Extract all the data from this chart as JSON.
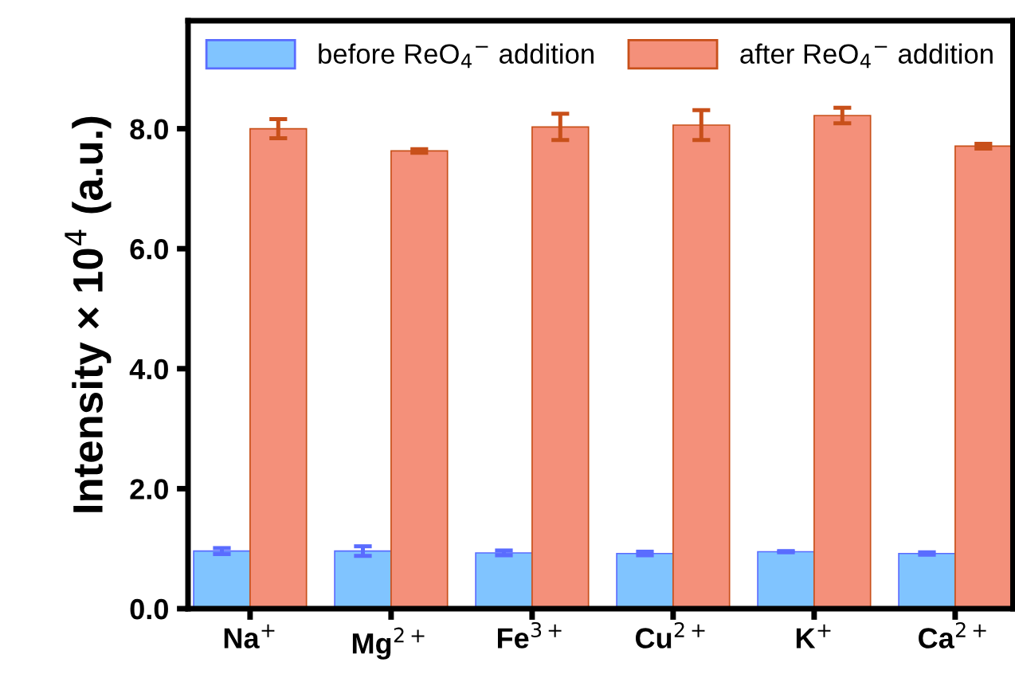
{
  "chart_data": {
    "type": "bar",
    "ylabel": "Intensity × 10$^{4}$ (a.u.)",
    "categories": [
      "Na$^{+}$",
      "Mg$^{2+}$",
      "Fe$^{3+}$",
      "Cu$^{2+}$",
      "K$^{+}$",
      "Ca$^{2+}$"
    ],
    "series": [
      {
        "name": "before ReO$_{4}$$^{−}$ addition",
        "color": "#80c4ff",
        "values": [
          0.96,
          0.96,
          0.93,
          0.92,
          0.95,
          0.92
        ],
        "errors": [
          0.05,
          0.08,
          0.04,
          0.03,
          0.01,
          0.02
        ]
      },
      {
        "name": "after ReO$_{4}$$^{−}$ addition",
        "color": "#f4907a",
        "values": [
          8.0,
          7.63,
          8.03,
          8.06,
          8.22,
          7.71
        ],
        "errors": [
          0.16,
          0.03,
          0.22,
          0.25,
          0.13,
          0.04
        ]
      }
    ],
    "ylim": [
      0,
      9.8
    ],
    "yticks": [
      {
        "value": 0,
        "label": "0.0"
      },
      {
        "value": 2,
        "label": "2.0"
      },
      {
        "value": 4,
        "label": "4.0"
      },
      {
        "value": 6,
        "label": "6.0"
      },
      {
        "value": 8,
        "label": "8.0"
      }
    ],
    "legend": "top",
    "grid": false
  }
}
